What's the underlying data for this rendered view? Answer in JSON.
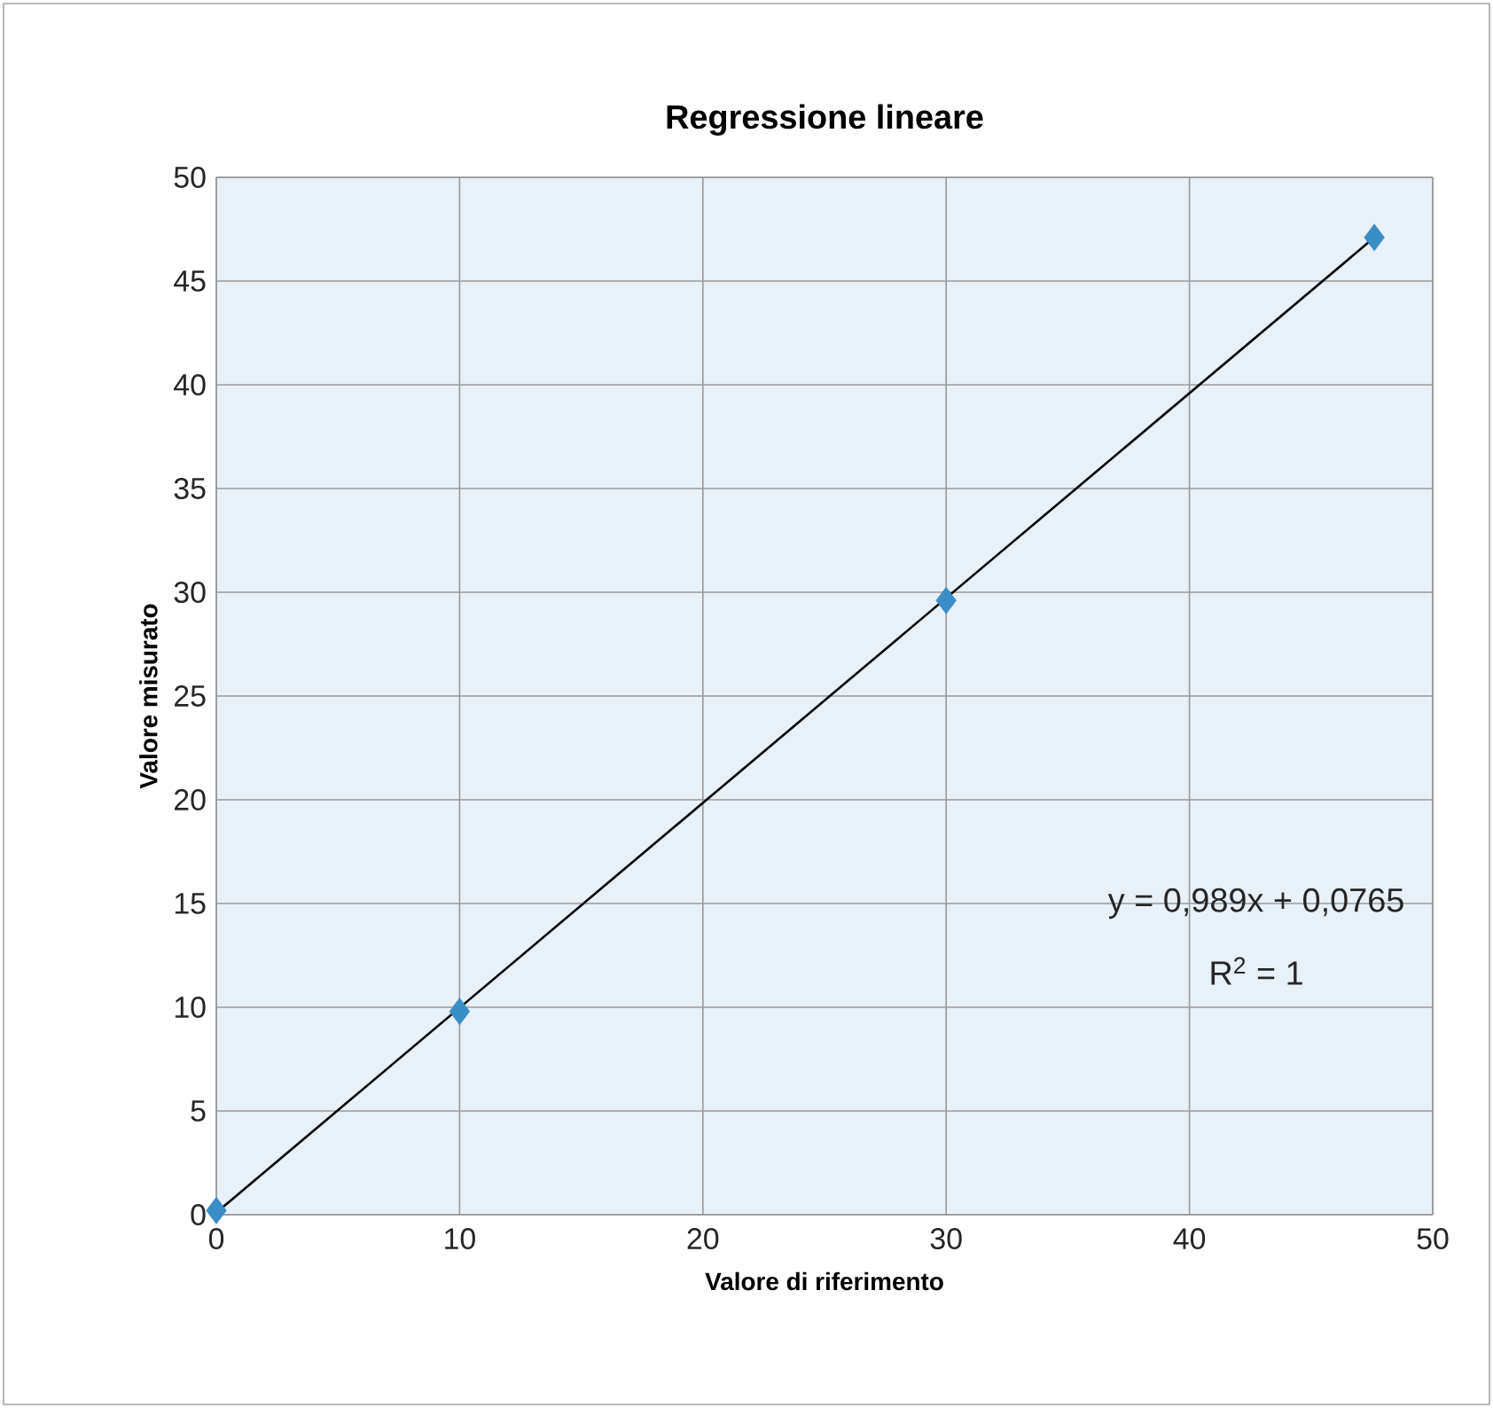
{
  "chart_data": {
    "type": "scatter",
    "title": "Regressione lineare",
    "xlabel": "Valore di riferimento",
    "ylabel": "Valore misurato",
    "xlim": [
      0,
      50
    ],
    "ylim": [
      0,
      50
    ],
    "xticks": [
      0,
      10,
      20,
      30,
      40,
      50
    ],
    "yticks": [
      0,
      5,
      10,
      15,
      20,
      25,
      30,
      35,
      40,
      45,
      50
    ],
    "grid": true,
    "marker": "diamond",
    "series": [
      {
        "x": [
          0,
          10,
          30,
          47.6
        ],
        "values": [
          0.2,
          9.8,
          29.6,
          47.1
        ],
        "color": "#3b8dc5"
      },
      {
        "type": "line",
        "x": [
          0,
          47.6
        ],
        "values": [
          0.1,
          47.1
        ],
        "color": "#000000",
        "marker": "none"
      }
    ],
    "annotations": [
      "y = 0,989x + 0,0765",
      "R$^{2}$ = 1"
    ]
  }
}
